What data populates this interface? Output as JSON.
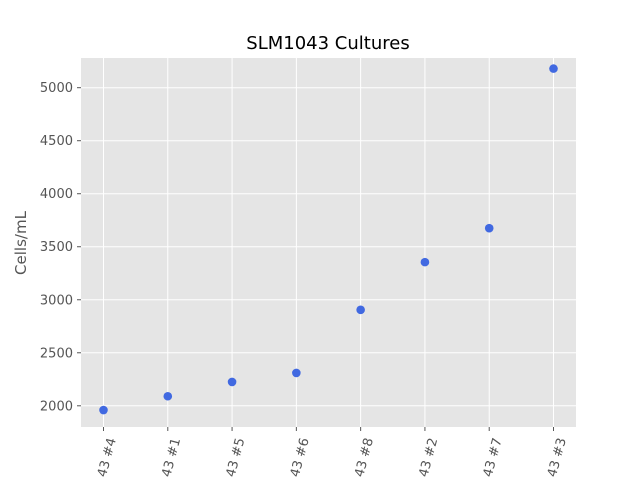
{
  "chart_data": {
    "type": "scatter",
    "title": "SLM1043 Cultures",
    "xlabel": "",
    "ylabel": "Cells/mL",
    "categories": [
      "43 #4",
      "43 #1",
      "43 #5",
      "43 #6",
      "43 #8",
      "43 #2",
      "43 #7",
      "43 #3"
    ],
    "values": [
      1960,
      2090,
      2225,
      2310,
      2905,
      3355,
      3675,
      5180
    ],
    "ylim": [
      1800,
      5280
    ],
    "yticks": [
      2000,
      2500,
      3000,
      3500,
      4000,
      4500,
      5000
    ],
    "grid": true,
    "legend": "none",
    "colors": {
      "marker": "#4169e1",
      "plot_background": "#e5e5e5",
      "grid": "#ffffff",
      "tick": "#555555"
    }
  }
}
